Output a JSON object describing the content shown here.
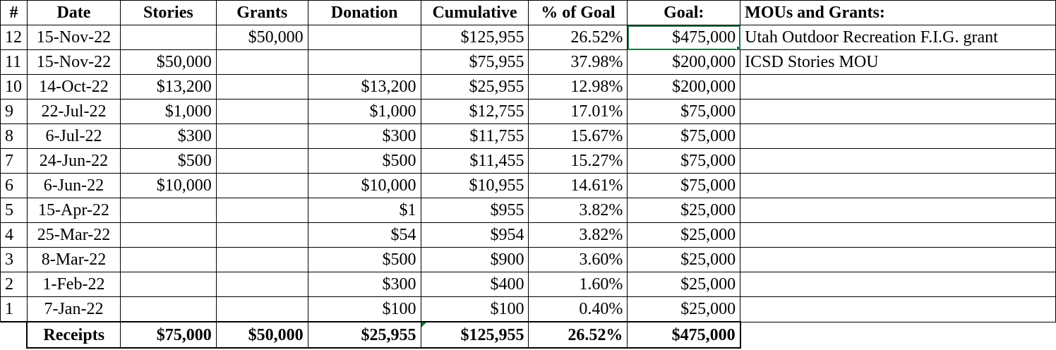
{
  "headers": {
    "idx": "#",
    "date": "Date",
    "stories": "Stories",
    "grants": "Grants",
    "donation": "Donation",
    "cumulative": "Cumulative",
    "pct_goal": "% of Goal",
    "goal": "Goal:",
    "memo": "MOUs and Grants:"
  },
  "rows": [
    {
      "idx": "12",
      "date": "15-Nov-22",
      "stories": "",
      "grants": "$50,000",
      "donation": "",
      "cumulative": "$125,955",
      "pct": "26.52%",
      "goal": "$475,000",
      "memo": "Utah Outdoor Recreation F.I.G. grant"
    },
    {
      "idx": "11",
      "date": "15-Nov-22",
      "stories": "$50,000",
      "grants": "",
      "donation": "",
      "cumulative": "$75,955",
      "pct": "37.98%",
      "goal": "$200,000",
      "memo": "ICSD Stories MOU"
    },
    {
      "idx": "10",
      "date": "14-Oct-22",
      "stories": "$13,200",
      "grants": "",
      "donation": "$13,200",
      "cumulative": "$25,955",
      "pct": "12.98%",
      "goal": "$200,000",
      "memo": ""
    },
    {
      "idx": "9",
      "date": "22-Jul-22",
      "stories": "$1,000",
      "grants": "",
      "donation": "$1,000",
      "cumulative": "$12,755",
      "pct": "17.01%",
      "goal": "$75,000",
      "memo": ""
    },
    {
      "idx": "8",
      "date": "6-Jul-22",
      "stories": "$300",
      "grants": "",
      "donation": "$300",
      "cumulative": "$11,755",
      "pct": "15.67%",
      "goal": "$75,000",
      "memo": ""
    },
    {
      "idx": "7",
      "date": "24-Jun-22",
      "stories": "$500",
      "grants": "",
      "donation": "$500",
      "cumulative": "$11,455",
      "pct": "15.27%",
      "goal": "$75,000",
      "memo": ""
    },
    {
      "idx": "6",
      "date": "6-Jun-22",
      "stories": "$10,000",
      "grants": "",
      "donation": "$10,000",
      "cumulative": "$10,955",
      "pct": "14.61%",
      "goal": "$75,000",
      "memo": ""
    },
    {
      "idx": "5",
      "date": "15-Apr-22",
      "stories": "",
      "grants": "",
      "donation": "$1",
      "cumulative": "$955",
      "pct": "3.82%",
      "goal": "$25,000",
      "memo": ""
    },
    {
      "idx": "4",
      "date": "25-Mar-22",
      "stories": "",
      "grants": "",
      "donation": "$54",
      "cumulative": "$954",
      "pct": "3.82%",
      "goal": "$25,000",
      "memo": ""
    },
    {
      "idx": "3",
      "date": "8-Mar-22",
      "stories": "",
      "grants": "",
      "donation": "$500",
      "cumulative": "$900",
      "pct": "3.60%",
      "goal": "$25,000",
      "memo": ""
    },
    {
      "idx": "2",
      "date": "1-Feb-22",
      "stories": "",
      "grants": "",
      "donation": "$300",
      "cumulative": "$400",
      "pct": "1.60%",
      "goal": "$25,000",
      "memo": ""
    },
    {
      "idx": "1",
      "date": "7-Jan-22",
      "stories": "",
      "grants": "",
      "donation": "$100",
      "cumulative": "$100",
      "pct": "0.40%",
      "goal": "$25,000",
      "memo": ""
    }
  ],
  "totals": {
    "label": "Receipts",
    "stories": "$75,000",
    "grants": "$50,000",
    "donation": "$25,955",
    "cumulative": "$125,955",
    "pct": "26.52%",
    "goal": "$475,000"
  },
  "colors": {
    "selection": "#217346",
    "error_indicator": "#1e7a3e"
  }
}
